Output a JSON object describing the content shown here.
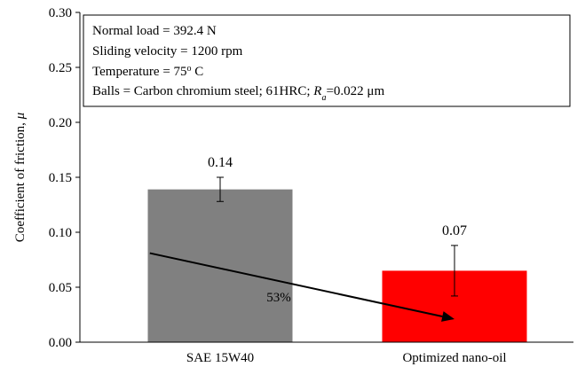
{
  "chart_data": {
    "type": "bar",
    "categories": [
      "SAE 15W40",
      "Optimized nano-oil"
    ],
    "values": [
      0.139,
      0.065
    ],
    "error_low": [
      0.128,
      0.042
    ],
    "error_high": [
      0.15,
      0.088
    ],
    "data_labels": [
      "0.14",
      "0.07"
    ],
    "colors": [
      "#808080",
      "#ff0000"
    ],
    "ylabel": "Coefficient of friction, ",
    "ylabel_symbol": "μ",
    "ylim": [
      0,
      0.3
    ],
    "yticks": [
      0,
      0.05,
      0.1,
      0.15,
      0.2,
      0.25,
      0.3
    ],
    "ytick_labels": [
      "0.00",
      "0.05",
      "0.10",
      "0.15",
      "0.20",
      "0.25",
      "0.30"
    ],
    "grid": false,
    "legend": "none",
    "annotation": {
      "text": "53%",
      "arrow_from": {
        "x": 0.2,
        "y": 0.081
      },
      "arrow_to": {
        "x": 1.5,
        "y": 0.021
      },
      "label_pos": {
        "x": 0.75,
        "y": 0.041
      }
    },
    "conditions_box": {
      "lines": [
        "Normal load = 392.4 N",
        "Sliding velocity = 1200 rpm",
        "Temperature = 75",
        "Balls = Carbon chromium steel; 61HRC; "
      ],
      "temp_sup": "o",
      "temp_unit": " C",
      "ra_symbol": "R",
      "ra_sub": "a",
      "ra_value": "=0.022 μm"
    }
  }
}
